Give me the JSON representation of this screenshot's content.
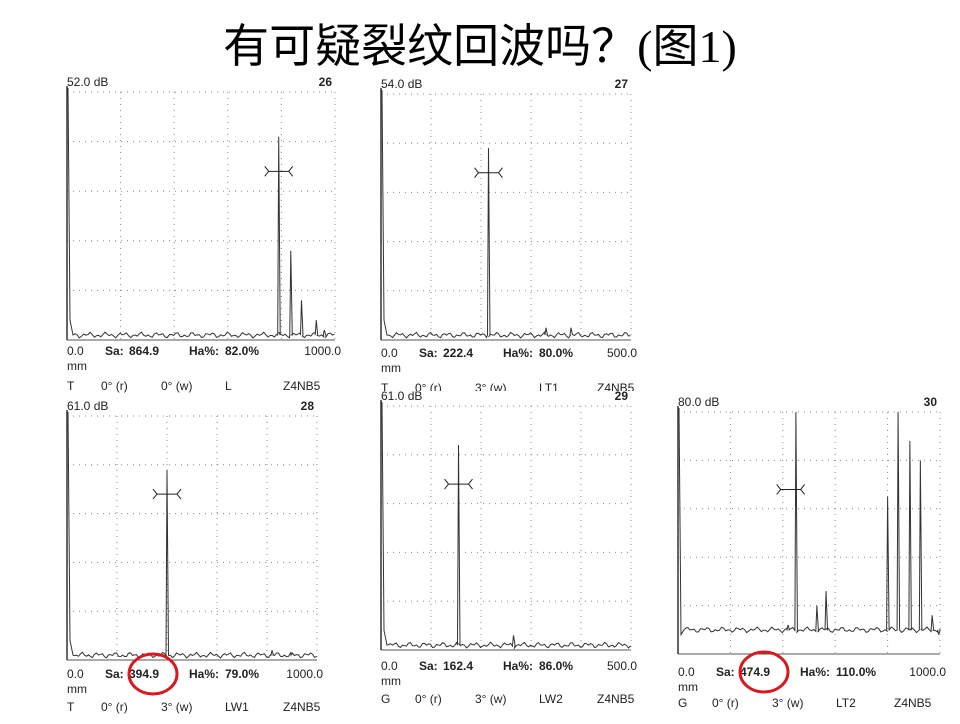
{
  "title": "有可疑裂纹回波吗？(图1)",
  "panels": [
    {
      "gain": "52.0 dB",
      "number": "26",
      "start": "0.0",
      "unit": "mm",
      "sa_label": "Sa:",
      "sa": "864.9",
      "ha_label": "Ha%:",
      "ha": "82.0%",
      "end": "1000.0",
      "footer": [
        "T",
        "0° (r)",
        "0° (w)",
        "L",
        "Z4NB5"
      ]
    },
    {
      "gain": "54.0 dB",
      "number": "27",
      "start": "0.0",
      "unit": "mm",
      "sa_label": "Sa:",
      "sa": "222.4",
      "ha_label": "Ha%:",
      "ha": "80.0%",
      "end": "500.0",
      "footer": [
        "T",
        "0° (r)",
        "3° (w)",
        "LT1",
        "Z4NB5"
      ]
    },
    {
      "gain": "61.0 dB",
      "number": "28",
      "start": "0.0",
      "unit": "mm",
      "sa_label": "Sa:",
      "sa": "394.9",
      "ha_label": "Ha%:",
      "ha": "79.0%",
      "end": "1000.0",
      "footer": [
        "T",
        "0° (r)",
        "3° (w)",
        "LW1",
        "Z4NB5"
      ]
    },
    {
      "gain": "61.0 dB",
      "number": "29",
      "start": "0.0",
      "unit": "mm",
      "sa_label": "Sa:",
      "sa": "162.4",
      "ha_label": "Ha%:",
      "ha": "86.0%",
      "end": "500.0",
      "footer": [
        "G",
        "0° (r)",
        "3° (w)",
        "LW2",
        "Z4NB5"
      ]
    },
    {
      "gain": "80.0 dB",
      "number": "30",
      "start": "0.0",
      "unit": "mm",
      "sa_label": "Sa:",
      "sa": "474.9",
      "ha_label": "Ha%:",
      "ha": "110.0%",
      "end": "1000.0",
      "footer": [
        "G",
        "0° (r)",
        "3° (w)",
        "LT2",
        "Z4NB5"
      ]
    }
  ]
}
